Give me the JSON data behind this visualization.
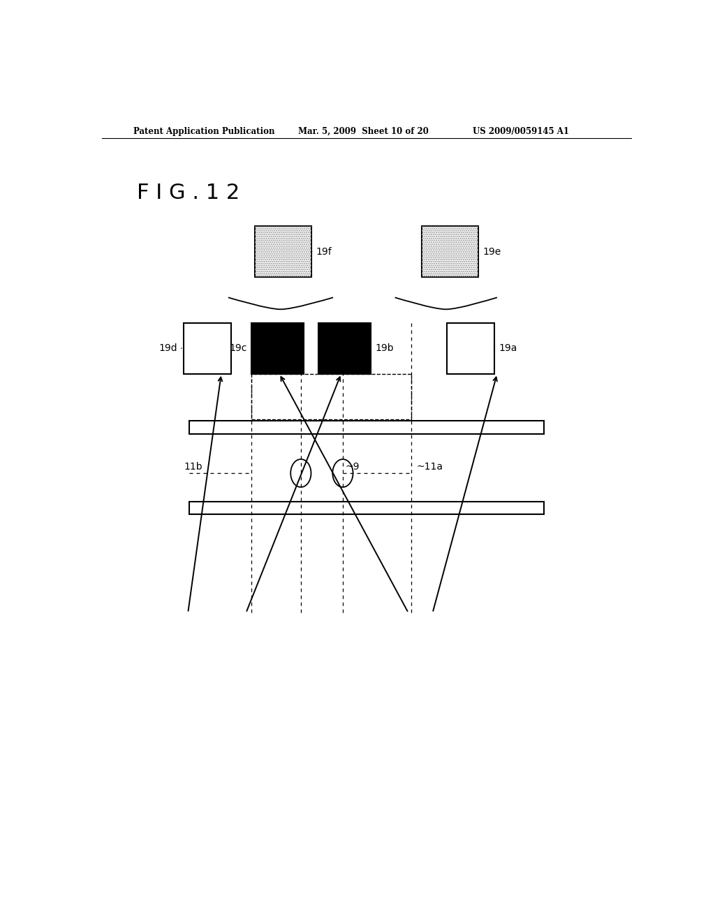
{
  "bg_color": "#ffffff",
  "header_left": "Patent Application Publication",
  "header_mid": "Mar. 5, 2009  Sheet 10 of 20",
  "header_right": "US 2009/0059145 A1",
  "fig_label": "F I G . 1 2",
  "gray_color": "#b0b0b0",
  "black_color": "#000000",
  "white_color": "#ffffff"
}
